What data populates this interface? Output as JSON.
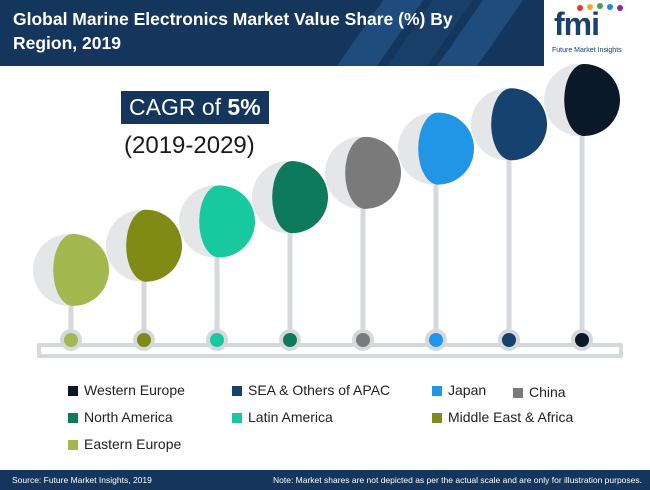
{
  "header": {
    "title": "Global Marine Electronics Market Value Share (%) By Region, 2019"
  },
  "logo": {
    "wordmark": "fmi",
    "tagline": "Future Market Insights"
  },
  "cagr": {
    "prefix": "CAGR of ",
    "value": "5%",
    "period": "(2019-2029)"
  },
  "chart_data": {
    "type": "bar",
    "title": "Global Marine Electronics Market Value Share (%) By Region, 2019",
    "categories": [
      "Eastern Europe",
      "Middle East & Africa",
      "Latin America",
      "North America",
      "China",
      "Japan",
      "SEA & Others of APAC",
      "Western Europe"
    ],
    "values": [
      1,
      2,
      3,
      4,
      5,
      6,
      7,
      8
    ],
    "value_note": "relative rank only; original note says shares are not depicted as per actual scale",
    "colors": [
      "#a4b850",
      "#7f8b14",
      "#18c9a0",
      "#0d7a5c",
      "#7a7a7a",
      "#2196e6",
      "#16426f",
      "#0b1827"
    ],
    "legend_order": [
      "Western Europe",
      "SEA & Others of APAC",
      "Japan",
      "China",
      "North America",
      "Latin America",
      "Middle East & Africa",
      "Eastern Europe"
    ],
    "legend_placement": "bottom"
  },
  "footer": {
    "source": "Source: Future Market Insights, 2019",
    "note": "Note: Market shares are not depicted as per the actual scale and are only for illustration purposes."
  }
}
